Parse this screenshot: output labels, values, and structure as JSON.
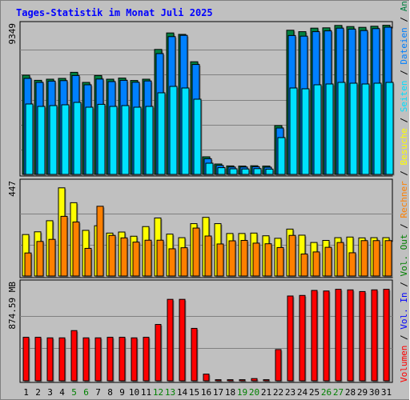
{
  "chart_data": {
    "type": "bar",
    "title": "Tages-Statistik im Monat Juli 2025",
    "categories": [
      "1",
      "2",
      "3",
      "4",
      "5",
      "6",
      "7",
      "8",
      "9",
      "10",
      "11",
      "12",
      "13",
      "14",
      "15",
      "16",
      "17",
      "18",
      "19",
      "20",
      "21",
      "22",
      "23",
      "24",
      "25",
      "26",
      "27",
      "28",
      "29",
      "30",
      "31"
    ],
    "weekend_days": [
      5,
      6,
      12,
      13,
      19,
      20,
      26,
      27
    ],
    "colors": {
      "title": "#0000ff",
      "weekday_label": "#000000",
      "weekend_label": "#008000",
      "anfragen": "#008040",
      "dateien": "#0080ff",
      "seiten": "#00e0ff",
      "besuche": "#ffff00",
      "rechner": "#ff8000",
      "volumen": "#ff0000",
      "vol_in": "#0000ff",
      "vol_out": "#008000",
      "sep": "#000000",
      "background": "#c0c0c0"
    },
    "panels": [
      {
        "id": "hits",
        "max_label": "9349",
        "max": 9349,
        "series": [
          {
            "name": "Anfragen",
            "values": [
              6200,
              5880,
              5950,
              6000,
              6380,
              5750,
              6180,
              5950,
              6020,
              5870,
              5950,
              7810,
              8840,
              8750,
              7040,
              1100,
              650,
              530,
              520,
              540,
              520,
              3050,
              9010,
              8920,
              9140,
              9160,
              9310,
              9240,
              9190,
              9260,
              9320
            ]
          },
          {
            "name": "Dateien",
            "values": [
              6000,
              5750,
              5830,
              5860,
              6180,
              5600,
              5960,
              5800,
              5880,
              5760,
              5840,
              7550,
              8610,
              8690,
              6870,
              980,
              560,
              460,
              460,
              480,
              450,
              2900,
              8680,
              8640,
              8920,
              8970,
              9140,
              9080,
              8990,
              9110,
              9200
            ]
          },
          {
            "name": "Seiten",
            "values": [
              4400,
              4250,
              4300,
              4350,
              4500,
              4200,
              4380,
              4250,
              4300,
              4200,
              4250,
              5100,
              5500,
              5400,
              4700,
              700,
              420,
              350,
              340,
              360,
              330,
              2300,
              5400,
              5350,
              5600,
              5650,
              5750,
              5700,
              5650,
              5700,
              5750
            ]
          }
        ]
      },
      {
        "id": "visits",
        "max_label": "447",
        "max": 447,
        "series": [
          {
            "name": "Besuche",
            "values": [
              198,
              211,
              264,
              421,
              350,
              218,
              240,
              205,
              210,
              190,
              236,
              277,
              200,
              183,
              250,
              280,
              250,
              203,
              203,
              205,
              192,
              180,
              224,
              195,
              160,
              170,
              183,
              186,
              182,
              183,
              183
            ]
          },
          {
            "name": "Rechner",
            "values": [
              110,
              165,
              175,
              285,
              258,
              132,
              333,
              194,
              182,
              162,
              171,
              171,
              130,
              135,
              229,
              191,
              153,
              168,
              170,
              157,
              154,
              136,
              194,
              105,
              115,
              137,
              160,
              111,
              169,
              169,
              169
            ]
          }
        ]
      },
      {
        "id": "volume",
        "max_label": "874.59 MB",
        "max": 874.59,
        "series": [
          {
            "name": "Volumen",
            "values": [
              390,
              390,
              385,
              385,
              450,
              385,
              385,
              390,
              390,
              385,
              390,
              505,
              730,
              730,
              470,
              60,
              10,
              10,
              10,
              20,
              10,
              280,
              760,
              765,
              810,
              805,
              820,
              815,
              800,
              815,
              820
            ]
          }
        ]
      }
    ],
    "legend": [
      {
        "text": "Volumen",
        "color_key": "volumen"
      },
      {
        "text": " / ",
        "color_key": "sep"
      },
      {
        "text": "Vol. In",
        "color_key": "vol_in"
      },
      {
        "text": " / ",
        "color_key": "sep"
      },
      {
        "text": "Vol. Out",
        "color_key": "vol_out"
      },
      {
        "text": " / ",
        "color_key": "sep"
      },
      {
        "text": "Rechner",
        "color_key": "rechner"
      },
      {
        "text": " / ",
        "color_key": "sep"
      },
      {
        "text": "Besuche",
        "color_key": "besuche"
      },
      {
        "text": " / ",
        "color_key": "sep"
      },
      {
        "text": "Seiten",
        "color_key": "seiten"
      },
      {
        "text": " / ",
        "color_key": "sep"
      },
      {
        "text": "Dateien",
        "color_key": "dateien"
      },
      {
        "text": " / ",
        "color_key": "sep"
      },
      {
        "text": "Anfragen",
        "color_key": "anfragen"
      }
    ]
  }
}
